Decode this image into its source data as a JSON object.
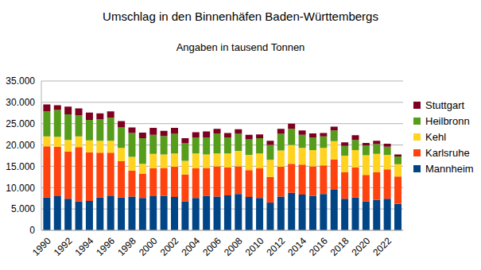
{
  "chart_data": {
    "type": "bar",
    "title": "Umschlag in den Binnenhäfen Baden-Württembergs",
    "subtitle": "Angaben in tausend Tonnen",
    "categories": [
      "1990",
      null,
      "1992",
      null,
      "1994",
      null,
      "1996",
      null,
      "1998",
      null,
      "2000",
      null,
      "2002",
      null,
      "2004",
      null,
      "2006",
      null,
      "2008",
      null,
      "2010",
      null,
      "2012",
      null,
      "2014",
      null,
      "2016",
      null,
      "2018",
      null,
      "2020",
      null,
      "2022",
      null
    ],
    "series": [
      {
        "name": "Mannheim",
        "color": "#004586",
        "values": [
          7700,
          8000,
          7400,
          6800,
          6900,
          7700,
          8000,
          7700,
          7900,
          7600,
          8000,
          8100,
          7800,
          6800,
          7600,
          8100,
          7900,
          8200,
          8500,
          7800,
          7600,
          6500,
          7900,
          8800,
          8400,
          8100,
          8500,
          9500,
          7400,
          7700,
          6800,
          7100,
          7400,
          6200
        ]
      },
      {
        "name": "Karlsruhe",
        "color": "#ff420e",
        "values": [
          12000,
          11600,
          11100,
          12700,
          11400,
          10500,
          10200,
          8500,
          6100,
          5600,
          6500,
          6500,
          7100,
          6300,
          6900,
          6500,
          7100,
          6500,
          6500,
          6300,
          6900,
          6000,
          7000,
          6800,
          7000,
          6900,
          6700,
          7100,
          6200,
          7000,
          6200,
          6500,
          6900,
          6400
        ]
      },
      {
        "name": "Kehl",
        "color": "#ffd320",
        "values": [
          2300,
          2300,
          2700,
          2500,
          2800,
          2800,
          2800,
          3100,
          3200,
          2400,
          3400,
          3200,
          3100,
          3200,
          3500,
          3200,
          3000,
          3300,
          3600,
          3600,
          3500,
          4000,
          3800,
          4400,
          3900,
          3800,
          4100,
          4300,
          3900,
          4100,
          4600,
          4300,
          3400,
          2900
        ]
      },
      {
        "name": "Heilbronn",
        "color": "#579d1c",
        "values": [
          5900,
          6300,
          6000,
          5000,
          4800,
          5000,
          5400,
          4800,
          5600,
          6000,
          4500,
          4300,
          4600,
          4100,
          3800,
          4000,
          4700,
          3800,
          4000,
          3600,
          3600,
          3500,
          3900,
          3800,
          3100,
          3000,
          2700,
          2500,
          2300,
          2400,
          2300,
          2300,
          1900,
          1800
        ]
      },
      {
        "name": "Stuttgart",
        "color": "#7e0021",
        "values": [
          1600,
          1100,
          1800,
          1600,
          1700,
          1400,
          1500,
          1500,
          1300,
          1300,
          1600,
          1200,
          1400,
          1200,
          1200,
          1400,
          1100,
          1000,
          1100,
          1100,
          900,
          1000,
          1200,
          1200,
          1000,
          900,
          800,
          900,
          800,
          1100,
          600,
          800,
          700,
          500
        ]
      }
    ],
    "ylim": [
      0,
      35000
    ],
    "yticks": [
      0,
      {
        "value": 5000,
        "label": "5.000"
      },
      {
        "value": 10000,
        "label": "10.000"
      },
      {
        "value": 15000,
        "label": "15.000"
      },
      {
        "value": 20000,
        "label": "20.000"
      },
      {
        "value": 25000,
        "label": "25.000"
      },
      {
        "value": 30000,
        "label": "30.000"
      },
      {
        "value": 35000,
        "label": "35.000"
      }
    ],
    "stacked": true,
    "grid": true,
    "legend": "right"
  }
}
